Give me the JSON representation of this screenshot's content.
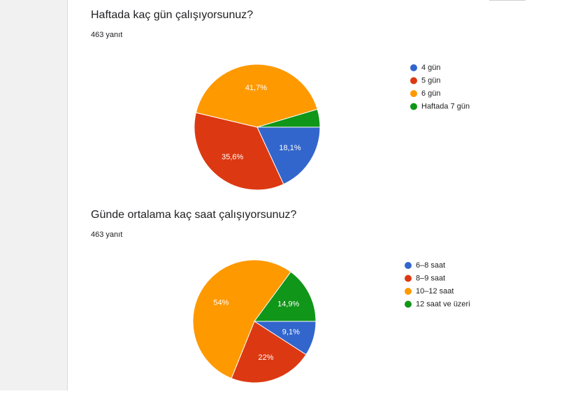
{
  "chart_data": [
    {
      "type": "pie",
      "title": "Haftada kaç gün çalışıyorsunuz?",
      "subtitle": "463 yanıt",
      "categories": [
        "4 gün",
        "5 gün",
        "6 gün",
        "Haftada 7 gün"
      ],
      "values": [
        18.1,
        35.6,
        41.7,
        4.6
      ],
      "value_labels": [
        "18,1%",
        "35,6%",
        "41,7%",
        null
      ],
      "colors": [
        "#3366cc",
        "#dc3912",
        "#ff9900",
        "#109618"
      ]
    },
    {
      "type": "pie",
      "title": "Günde ortalama kaç saat çalışıyorsunuz?",
      "subtitle": "463 yanıt",
      "categories": [
        "6–8 saat",
        "8–9 saat",
        "10–12 saat",
        "12 saat ve üzeri"
      ],
      "values": [
        9.1,
        22,
        54,
        14.9
      ],
      "value_labels": [
        "9,1%",
        "22%",
        "54%",
        "14,9%"
      ],
      "colors": [
        "#3366cc",
        "#dc3912",
        "#ff9900",
        "#109618"
      ]
    }
  ]
}
